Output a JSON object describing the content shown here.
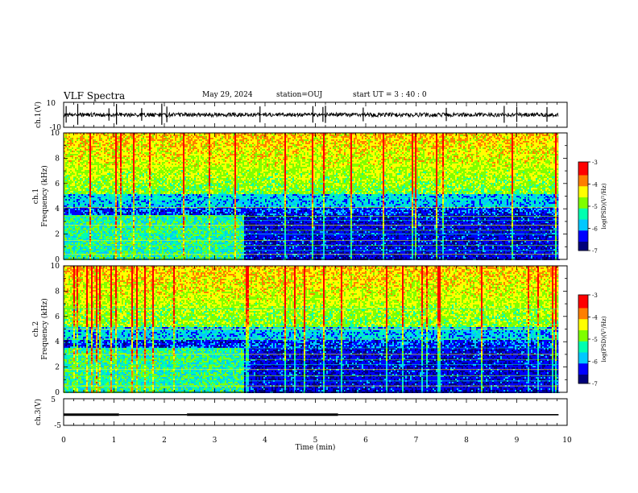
{
  "header": {
    "title": "VLF Spectra",
    "date": "May 29, 2024",
    "station": "station=OUJ",
    "start": "start UT = 3 : 40 : 0"
  },
  "chart_data": [
    {
      "type": "line",
      "panel": "ch1-waveform",
      "ylabel": "ch.1(V)",
      "ylim": [
        -10,
        10
      ],
      "yticks": [
        "10",
        "-10"
      ],
      "x_range_min": [
        0,
        9.83
      ],
      "baseline": 0,
      "spike_times_min": [
        0.05,
        0.28,
        0.9,
        1.05,
        1.55,
        1.95,
        2.05,
        3.9,
        4.95,
        5.15,
        5.2,
        5.95,
        7.6,
        8.75,
        9.0,
        9.6
      ]
    },
    {
      "type": "heatmap",
      "panel": "ch1-spectrogram",
      "ylabel": "ch.1\nFrequency (kHz)",
      "ylim": [
        0,
        10
      ],
      "yticks": [
        "0",
        "2",
        "4",
        "6",
        "8",
        "10"
      ],
      "x_range_min": [
        0,
        9.83
      ],
      "scale": "log(PSD) V^2/Hz",
      "colorbar": {
        "range": [
          -7,
          -3
        ],
        "ticks": [
          "-3",
          "-4",
          "-5",
          "-6",
          "-7"
        ],
        "label": "log(PSD)(V²/Hz)"
      },
      "level_change_min": 3.58,
      "narrowband_lines_khz": [
        0.4,
        0.7,
        1.1,
        1.5,
        2.0,
        2.3,
        2.7,
        3.1,
        3.4,
        4.1,
        4.8
      ]
    },
    {
      "type": "heatmap",
      "panel": "ch2-spectrogram",
      "ylabel": "ch.2\nFrequency (kHz)",
      "ylim": [
        0,
        10
      ],
      "yticks": [
        "0",
        "2",
        "4",
        "6",
        "8",
        "10"
      ],
      "x_range_min": [
        0,
        9.83
      ],
      "scale": "log(PSD) V^2/Hz",
      "colorbar": {
        "range": [
          -7,
          -3
        ],
        "ticks": [
          "-3",
          "-4",
          "-5",
          "-6",
          "-7"
        ],
        "label": "log(PSD)(V²/Hz)"
      },
      "level_change_min": 3.58,
      "narrowband_lines_khz": [
        0.5,
        0.9,
        1.3,
        1.8,
        2.2,
        2.6,
        3.0,
        3.5,
        4.2,
        5.0,
        6.6
      ]
    },
    {
      "type": "line",
      "panel": "ch3-waveform",
      "ylabel": "ch.3(V)",
      "ylim": [
        -5,
        5
      ],
      "yticks": [
        "5",
        "-5"
      ],
      "x_range_min": [
        0,
        9.83
      ],
      "level": -1.0,
      "segments_min": [
        [
          0,
          1.1
        ],
        [
          1.1,
          2.45
        ],
        [
          2.45,
          5.45
        ],
        [
          5.45,
          9.83
        ]
      ]
    }
  ],
  "xaxis": {
    "label": "Time (min)",
    "range": [
      0,
      10
    ],
    "ticks": [
      "0",
      "1",
      "2",
      "3",
      "4",
      "5",
      "6",
      "7",
      "8",
      "9",
      "10"
    ]
  },
  "colors": {
    "background": "#ffffff",
    "ink": "#000000",
    "colormap": [
      "#00007a",
      "#0000ff",
      "#00c8ff",
      "#00ffb0",
      "#7fff00",
      "#ffff00",
      "#ff7f00",
      "#ff0000"
    ]
  }
}
